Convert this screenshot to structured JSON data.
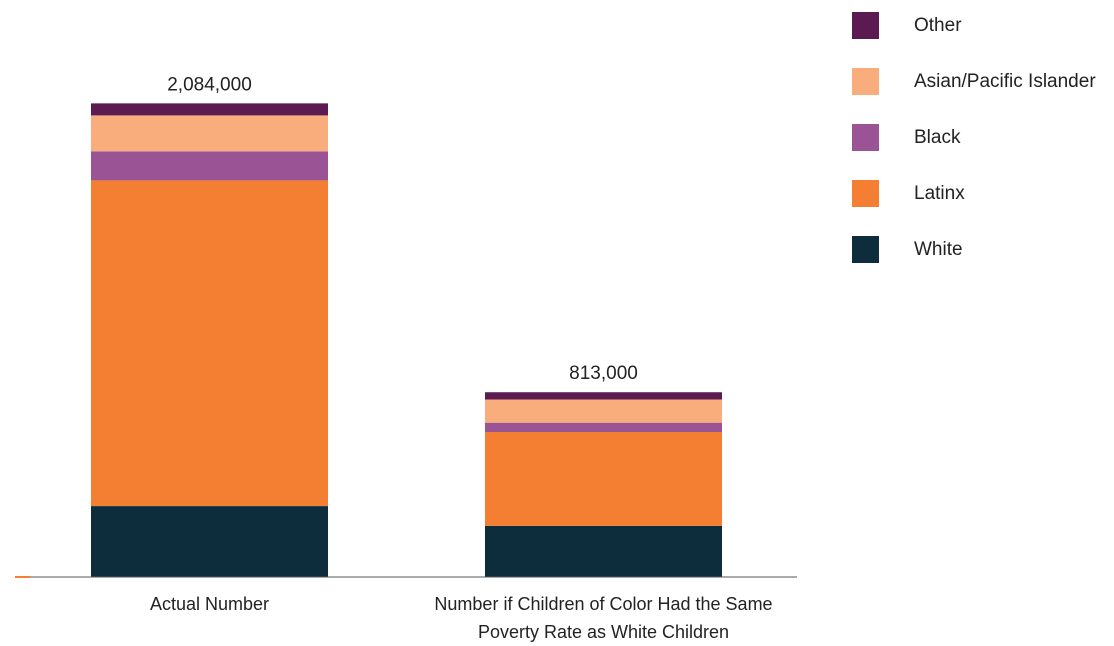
{
  "chart_data": {
    "type": "stacked-bar",
    "categories": [
      "Actual Number",
      "Number if Children of Color Had the Same Poverty Rate as White Children"
    ],
    "series": [
      {
        "name": "White",
        "color": "#0d2d3d",
        "values": [
          312000,
          225000
        ]
      },
      {
        "name": "Latinx",
        "color": "#f47e32",
        "values": [
          1433000,
          413000
        ]
      },
      {
        "name": "Black",
        "color": "#9a5496",
        "values": [
          128000,
          41000
        ]
      },
      {
        "name": "Asian/Pacific Islander",
        "color": "#f9ad7d",
        "values": [
          158000,
          102000
        ]
      },
      {
        "name": "Other",
        "color": "#5c1a52",
        "values": [
          53000,
          32000
        ]
      }
    ],
    "totals": {
      "values": [
        2084000,
        813000
      ],
      "value_labels": [
        "2,084,000",
        "813,000"
      ]
    },
    "ylim": [
      0,
      2200000
    ],
    "legend": "right"
  }
}
